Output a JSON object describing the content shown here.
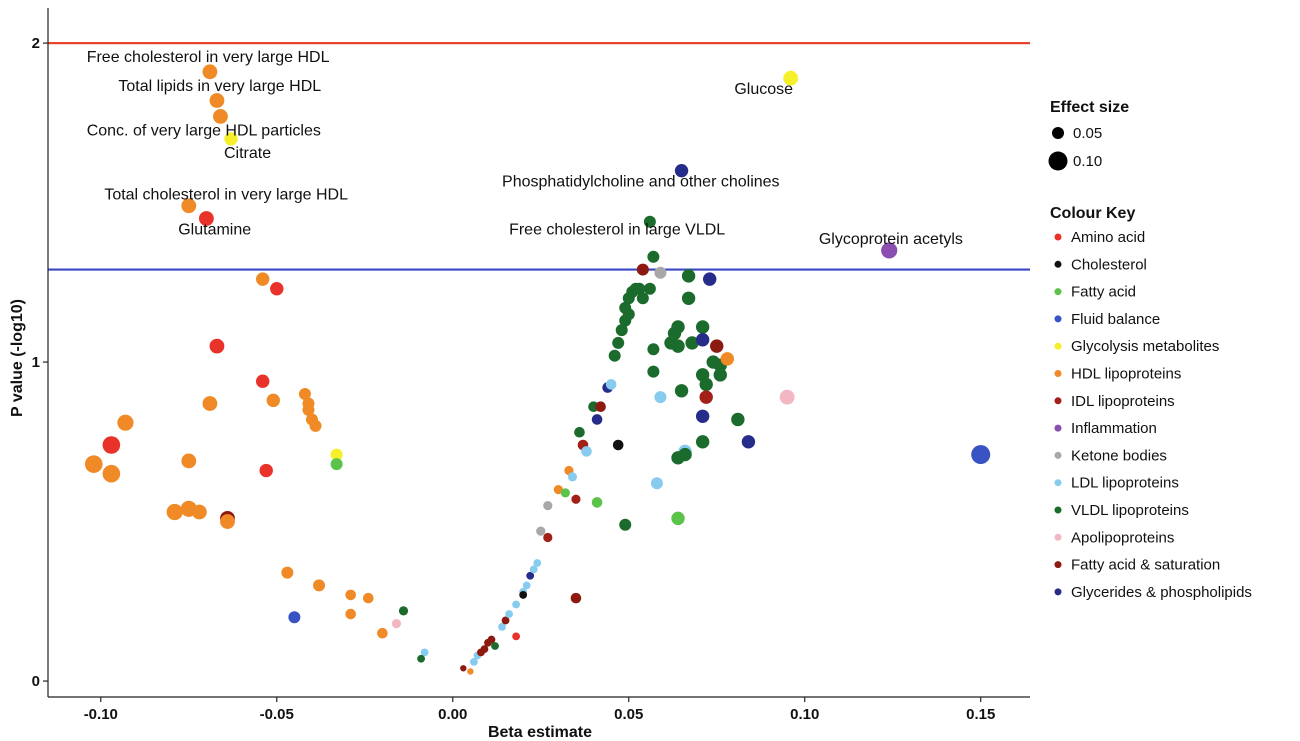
{
  "chart_data": {
    "type": "scatter",
    "xlabel": "Beta estimate",
    "ylabel": "P value (-log10)",
    "xlim": [
      -0.115,
      0.164
    ],
    "ylim": [
      -0.05,
      2.11
    ],
    "x_ticks": [
      -0.1,
      -0.05,
      0.0,
      0.05,
      0.1,
      0.15
    ],
    "x_tick_labels": [
      "-0.10",
      "-0.05",
      "0.00",
      "0.05",
      "0.10",
      "0.15"
    ],
    "y_ticks": [
      0,
      1,
      2
    ],
    "y_tick_labels": [
      "0",
      "1",
      "2"
    ],
    "grid": false,
    "reference_lines": [
      {
        "y": 2.0,
        "color": "#e8442c"
      },
      {
        "y": 1.29,
        "color": "#3b48c4"
      }
    ],
    "legend_placement": "right",
    "size_legend": {
      "title": "Effect size",
      "entries": [
        {
          "label": "0.05",
          "size": 0.05
        },
        {
          "label": "0.10",
          "size": 0.1
        }
      ]
    },
    "colour_legend": {
      "title": "Colour Key",
      "entries": [
        {
          "label": "Amino acid",
          "color": "#e8322a"
        },
        {
          "label": "Cholesterol",
          "color": "#111111"
        },
        {
          "label": "Fatty acid",
          "color": "#5cc34a"
        },
        {
          "label": "Fluid balance",
          "color": "#3953c4"
        },
        {
          "label": "Glycolysis metabolites",
          "color": "#f6f02a"
        },
        {
          "label": "HDL lipoproteins",
          "color": "#f08a26"
        },
        {
          "label": "IDL lipoproteins",
          "color": "#a32018"
        },
        {
          "label": "Inflammation",
          "color": "#8a4fb0"
        },
        {
          "label": "Ketone bodies",
          "color": "#a8a8a8"
        },
        {
          "label": "LDL lipoproteins",
          "color": "#87ccef"
        },
        {
          "label": "VLDL lipoproteins",
          "color": "#1a6b2c"
        },
        {
          "label": "Apolipoproteins",
          "color": "#f3b6c3"
        },
        {
          "label": "Fatty acid & saturation",
          "color": "#8c1a10"
        },
        {
          "label": "Glycerides & phospholipids",
          "color": "#262c8a"
        }
      ]
    },
    "points": [
      {
        "x": -0.069,
        "y": 1.91,
        "g": 5,
        "s": 0.07
      },
      {
        "x": -0.067,
        "y": 1.82,
        "g": 5,
        "s": 0.07
      },
      {
        "x": -0.066,
        "y": 1.77,
        "g": 5,
        "s": 0.07
      },
      {
        "x": -0.063,
        "y": 1.7,
        "g": 4,
        "s": 0.06
      },
      {
        "x": -0.075,
        "y": 1.49,
        "g": 5,
        "s": 0.07
      },
      {
        "x": -0.07,
        "y": 1.45,
        "g": 0,
        "s": 0.07
      },
      {
        "x": -0.054,
        "y": 1.26,
        "g": 5,
        "s": 0.06
      },
      {
        "x": -0.05,
        "y": 1.23,
        "g": 0,
        "s": 0.06
      },
      {
        "x": -0.067,
        "y": 1.05,
        "g": 0,
        "s": 0.07
      },
      {
        "x": -0.054,
        "y": 0.94,
        "g": 0,
        "s": 0.06
      },
      {
        "x": -0.042,
        "y": 0.9,
        "g": 5,
        "s": 0.05
      },
      {
        "x": -0.041,
        "y": 0.87,
        "g": 5,
        "s": 0.05
      },
      {
        "x": -0.041,
        "y": 0.85,
        "g": 5,
        "s": 0.05
      },
      {
        "x": -0.04,
        "y": 0.82,
        "g": 5,
        "s": 0.05
      },
      {
        "x": -0.039,
        "y": 0.8,
        "g": 5,
        "s": 0.05
      },
      {
        "x": -0.051,
        "y": 0.88,
        "g": 5,
        "s": 0.06
      },
      {
        "x": -0.069,
        "y": 0.87,
        "g": 5,
        "s": 0.07
      },
      {
        "x": -0.093,
        "y": 0.81,
        "g": 5,
        "s": 0.08
      },
      {
        "x": -0.097,
        "y": 0.74,
        "g": 0,
        "s": 0.09
      },
      {
        "x": -0.102,
        "y": 0.68,
        "g": 5,
        "s": 0.09
      },
      {
        "x": -0.097,
        "y": 0.65,
        "g": 5,
        "s": 0.09
      },
      {
        "x": -0.075,
        "y": 0.69,
        "g": 5,
        "s": 0.07
      },
      {
        "x": -0.053,
        "y": 0.66,
        "g": 0,
        "s": 0.06
      },
      {
        "x": -0.033,
        "y": 0.71,
        "g": 4,
        "s": 0.05
      },
      {
        "x": -0.033,
        "y": 0.68,
        "g": 2,
        "s": 0.05
      },
      {
        "x": -0.079,
        "y": 0.53,
        "g": 5,
        "s": 0.08
      },
      {
        "x": -0.075,
        "y": 0.54,
        "g": 5,
        "s": 0.08
      },
      {
        "x": -0.072,
        "y": 0.53,
        "g": 5,
        "s": 0.07
      },
      {
        "x": -0.064,
        "y": 0.51,
        "g": 12,
        "s": 0.07
      },
      {
        "x": -0.064,
        "y": 0.5,
        "g": 5,
        "s": 0.07
      },
      {
        "x": -0.047,
        "y": 0.34,
        "g": 5,
        "s": 0.05
      },
      {
        "x": -0.038,
        "y": 0.3,
        "g": 5,
        "s": 0.05
      },
      {
        "x": -0.029,
        "y": 0.27,
        "g": 5,
        "s": 0.04
      },
      {
        "x": -0.024,
        "y": 0.26,
        "g": 5,
        "s": 0.04
      },
      {
        "x": -0.029,
        "y": 0.21,
        "g": 5,
        "s": 0.04
      },
      {
        "x": -0.045,
        "y": 0.2,
        "g": 3,
        "s": 0.05
      },
      {
        "x": -0.014,
        "y": 0.22,
        "g": 10,
        "s": 0.03
      },
      {
        "x": -0.016,
        "y": 0.18,
        "g": 11,
        "s": 0.03
      },
      {
        "x": -0.02,
        "y": 0.15,
        "g": 5,
        "s": 0.04
      },
      {
        "x": -0.008,
        "y": 0.09,
        "g": 9,
        "s": 0.02
      },
      {
        "x": -0.009,
        "y": 0.07,
        "g": 10,
        "s": 0.02
      },
      {
        "x": 0.003,
        "y": 0.04,
        "g": 12,
        "s": 0.01
      },
      {
        "x": 0.005,
        "y": 0.03,
        "g": 5,
        "s": 0.01
      },
      {
        "x": 0.006,
        "y": 0.06,
        "g": 9,
        "s": 0.02
      },
      {
        "x": 0.007,
        "y": 0.08,
        "g": 9,
        "s": 0.02
      },
      {
        "x": 0.008,
        "y": 0.09,
        "g": 12,
        "s": 0.02
      },
      {
        "x": 0.009,
        "y": 0.1,
        "g": 12,
        "s": 0.02
      },
      {
        "x": 0.01,
        "y": 0.12,
        "g": 12,
        "s": 0.02
      },
      {
        "x": 0.011,
        "y": 0.13,
        "g": 12,
        "s": 0.02
      },
      {
        "x": 0.012,
        "y": 0.11,
        "g": 10,
        "s": 0.02
      },
      {
        "x": 0.014,
        "y": 0.17,
        "g": 9,
        "s": 0.02
      },
      {
        "x": 0.015,
        "y": 0.19,
        "g": 12,
        "s": 0.02
      },
      {
        "x": 0.016,
        "y": 0.21,
        "g": 9,
        "s": 0.02
      },
      {
        "x": 0.018,
        "y": 0.24,
        "g": 9,
        "s": 0.02
      },
      {
        "x": 0.02,
        "y": 0.28,
        "g": 9,
        "s": 0.02
      },
      {
        "x": 0.021,
        "y": 0.3,
        "g": 9,
        "s": 0.02
      },
      {
        "x": 0.022,
        "y": 0.33,
        "g": 13,
        "s": 0.02
      },
      {
        "x": 0.023,
        "y": 0.35,
        "g": 9,
        "s": 0.02
      },
      {
        "x": 0.024,
        "y": 0.37,
        "g": 9,
        "s": 0.02
      },
      {
        "x": 0.02,
        "y": 0.27,
        "g": 1,
        "s": 0.02
      },
      {
        "x": 0.018,
        "y": 0.14,
        "g": 0,
        "s": 0.02
      },
      {
        "x": 0.025,
        "y": 0.47,
        "g": 8,
        "s": 0.03
      },
      {
        "x": 0.027,
        "y": 0.45,
        "g": 6,
        "s": 0.03
      },
      {
        "x": 0.027,
        "y": 0.55,
        "g": 8,
        "s": 0.03
      },
      {
        "x": 0.03,
        "y": 0.6,
        "g": 5,
        "s": 0.03
      },
      {
        "x": 0.032,
        "y": 0.59,
        "g": 2,
        "s": 0.03
      },
      {
        "x": 0.033,
        "y": 0.66,
        "g": 5,
        "s": 0.03
      },
      {
        "x": 0.034,
        "y": 0.64,
        "g": 9,
        "s": 0.03
      },
      {
        "x": 0.035,
        "y": 0.57,
        "g": 6,
        "s": 0.03
      },
      {
        "x": 0.036,
        "y": 0.78,
        "g": 10,
        "s": 0.04
      },
      {
        "x": 0.037,
        "y": 0.74,
        "g": 6,
        "s": 0.04
      },
      {
        "x": 0.038,
        "y": 0.72,
        "g": 9,
        "s": 0.04
      },
      {
        "x": 0.035,
        "y": 0.26,
        "g": 12,
        "s": 0.04
      },
      {
        "x": 0.04,
        "y": 0.86,
        "g": 10,
        "s": 0.04
      },
      {
        "x": 0.041,
        "y": 0.82,
        "g": 13,
        "s": 0.04
      },
      {
        "x": 0.041,
        "y": 0.56,
        "g": 2,
        "s": 0.04
      },
      {
        "x": 0.042,
        "y": 0.86,
        "g": 12,
        "s": 0.04
      },
      {
        "x": 0.044,
        "y": 0.92,
        "g": 13,
        "s": 0.04
      },
      {
        "x": 0.045,
        "y": 0.93,
        "g": 9,
        "s": 0.04
      },
      {
        "x": 0.047,
        "y": 0.74,
        "g": 1,
        "s": 0.04
      },
      {
        "x": 0.046,
        "y": 1.02,
        "g": 10,
        "s": 0.05
      },
      {
        "x": 0.047,
        "y": 1.06,
        "g": 10,
        "s": 0.05
      },
      {
        "x": 0.048,
        "y": 1.1,
        "g": 10,
        "s": 0.05
      },
      {
        "x": 0.049,
        "y": 1.13,
        "g": 10,
        "s": 0.05
      },
      {
        "x": 0.049,
        "y": 1.17,
        "g": 10,
        "s": 0.05
      },
      {
        "x": 0.05,
        "y": 1.2,
        "g": 10,
        "s": 0.05
      },
      {
        "x": 0.051,
        "y": 1.22,
        "g": 10,
        "s": 0.05
      },
      {
        "x": 0.052,
        "y": 1.23,
        "g": 10,
        "s": 0.05
      },
      {
        "x": 0.053,
        "y": 1.23,
        "g": 10,
        "s": 0.05
      },
      {
        "x": 0.054,
        "y": 1.2,
        "g": 10,
        "s": 0.05
      },
      {
        "x": 0.05,
        "y": 1.15,
        "g": 10,
        "s": 0.05
      },
      {
        "x": 0.049,
        "y": 0.49,
        "g": 10,
        "s": 0.05
      },
      {
        "x": 0.054,
        "y": 1.29,
        "g": 12,
        "s": 0.05
      },
      {
        "x": 0.056,
        "y": 1.44,
        "g": 10,
        "s": 0.05
      },
      {
        "x": 0.057,
        "y": 1.33,
        "g": 10,
        "s": 0.05
      },
      {
        "x": 0.056,
        "y": 1.23,
        "g": 10,
        "s": 0.05
      },
      {
        "x": 0.057,
        "y": 1.04,
        "g": 10,
        "s": 0.05
      },
      {
        "x": 0.057,
        "y": 0.97,
        "g": 10,
        "s": 0.05
      },
      {
        "x": 0.059,
        "y": 1.28,
        "g": 8,
        "s": 0.05
      },
      {
        "x": 0.059,
        "y": 0.89,
        "g": 9,
        "s": 0.05
      },
      {
        "x": 0.058,
        "y": 0.62,
        "g": 9,
        "s": 0.05
      },
      {
        "x": 0.065,
        "y": 1.6,
        "g": 13,
        "s": 0.06
      },
      {
        "x": 0.062,
        "y": 1.06,
        "g": 10,
        "s": 0.06
      },
      {
        "x": 0.063,
        "y": 1.09,
        "g": 10,
        "s": 0.06
      },
      {
        "x": 0.064,
        "y": 1.11,
        "g": 10,
        "s": 0.06
      },
      {
        "x": 0.064,
        "y": 1.05,
        "g": 10,
        "s": 0.06
      },
      {
        "x": 0.065,
        "y": 0.91,
        "g": 10,
        "s": 0.06
      },
      {
        "x": 0.066,
        "y": 0.72,
        "g": 9,
        "s": 0.06
      },
      {
        "x": 0.067,
        "y": 1.27,
        "g": 10,
        "s": 0.06
      },
      {
        "x": 0.067,
        "y": 1.2,
        "g": 10,
        "s": 0.06
      },
      {
        "x": 0.068,
        "y": 1.06,
        "g": 10,
        "s": 0.06
      },
      {
        "x": 0.064,
        "y": 0.51,
        "g": 2,
        "s": 0.06
      },
      {
        "x": 0.064,
        "y": 0.7,
        "g": 10,
        "s": 0.06
      },
      {
        "x": 0.066,
        "y": 0.71,
        "g": 10,
        "s": 0.06
      },
      {
        "x": 0.071,
        "y": 1.11,
        "g": 10,
        "s": 0.06
      },
      {
        "x": 0.071,
        "y": 1.07,
        "g": 13,
        "s": 0.06
      },
      {
        "x": 0.071,
        "y": 0.96,
        "g": 10,
        "s": 0.06
      },
      {
        "x": 0.072,
        "y": 0.93,
        "g": 10,
        "s": 0.06
      },
      {
        "x": 0.072,
        "y": 0.89,
        "g": 6,
        "s": 0.06
      },
      {
        "x": 0.071,
        "y": 0.75,
        "g": 10,
        "s": 0.06
      },
      {
        "x": 0.071,
        "y": 0.83,
        "g": 13,
        "s": 0.06
      },
      {
        "x": 0.073,
        "y": 1.26,
        "g": 13,
        "s": 0.06
      },
      {
        "x": 0.074,
        "y": 1.0,
        "g": 10,
        "s": 0.06
      },
      {
        "x": 0.075,
        "y": 1.05,
        "g": 12,
        "s": 0.06
      },
      {
        "x": 0.076,
        "y": 0.99,
        "g": 10,
        "s": 0.06
      },
      {
        "x": 0.078,
        "y": 1.01,
        "g": 5,
        "s": 0.06
      },
      {
        "x": 0.076,
        "y": 0.96,
        "g": 10,
        "s": 0.06
      },
      {
        "x": 0.081,
        "y": 0.82,
        "g": 10,
        "s": 0.06
      },
      {
        "x": 0.084,
        "y": 0.75,
        "g": 13,
        "s": 0.06
      },
      {
        "x": 0.096,
        "y": 1.89,
        "g": 4,
        "s": 0.07
      },
      {
        "x": 0.095,
        "y": 0.89,
        "g": 11,
        "s": 0.07
      },
      {
        "x": 0.124,
        "y": 1.35,
        "g": 7,
        "s": 0.08
      },
      {
        "x": 0.15,
        "y": 0.71,
        "g": 3,
        "s": 0.1
      }
    ],
    "annotations": [
      {
        "text": "Free cholesterol in very large HDL",
        "x": -0.104,
        "y": 1.94
      },
      {
        "text": "Total lipids in very large HDL",
        "x": -0.095,
        "y": 1.85
      },
      {
        "text": "Conc. of very large HDL particles",
        "x": -0.104,
        "y": 1.71
      },
      {
        "text": "Citrate",
        "x": -0.065,
        "y": 1.64
      },
      {
        "text": "Total cholesterol in very large HDL",
        "x": -0.099,
        "y": 1.51
      },
      {
        "text": "Glutamine",
        "x": -0.078,
        "y": 1.4
      },
      {
        "text": "Glucose",
        "x": 0.08,
        "y": 1.84
      },
      {
        "text": "Phosphatidylcholine and other cholines",
        "x": 0.014,
        "y": 1.55
      },
      {
        "text": "Free cholesterol in large VLDL",
        "x": 0.016,
        "y": 1.4
      },
      {
        "text": "Glycoprotein acetyls",
        "x": 0.104,
        "y": 1.37
      }
    ]
  }
}
